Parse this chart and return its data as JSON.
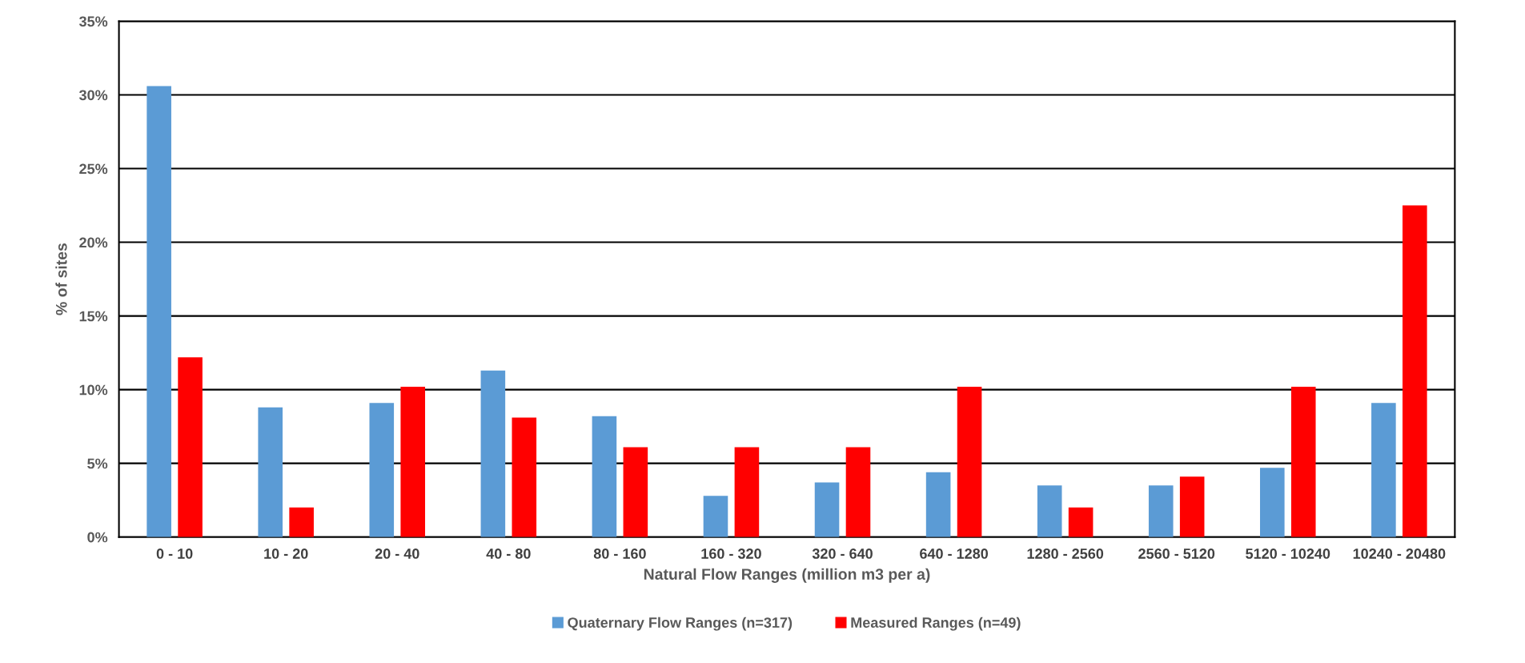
{
  "chart_data": {
    "type": "bar",
    "xlabel": "Natural Flow Ranges (million m3 per a)",
    "ylabel": "% of sites",
    "categories": [
      "0 - 10",
      "10 - 20",
      "20 - 40",
      "40 - 80",
      "80 - 160",
      "160 - 320",
      "320 - 640",
      "640 - 1280",
      "1280 - 2560",
      "2560 - 5120",
      "5120 - 10240",
      "10240 - 20480"
    ],
    "series": [
      {
        "name": "Quaternary Flow Ranges (n=317)",
        "color": "#5b9bd5",
        "values": [
          30.6,
          8.8,
          9.1,
          11.3,
          8.2,
          2.8,
          3.7,
          4.4,
          3.5,
          3.5,
          4.7,
          9.1
        ]
      },
      {
        "name": "Measured Ranges (n=49)",
        "color": "#ff0000",
        "values": [
          12.2,
          2.0,
          10.2,
          8.1,
          6.1,
          6.1,
          6.1,
          10.2,
          2.0,
          4.1,
          10.2,
          22.5
        ]
      }
    ],
    "ylim": [
      0,
      35
    ],
    "yticks": [
      {
        "value": 0,
        "label": "0%"
      },
      {
        "value": 5,
        "label": "5%"
      },
      {
        "value": 10,
        "label": "10%"
      },
      {
        "value": 15,
        "label": "15%"
      },
      {
        "value": 20,
        "label": "20%"
      },
      {
        "value": 25,
        "label": "25%"
      },
      {
        "value": 30,
        "label": "30%"
      },
      {
        "value": 35,
        "label": "35%"
      }
    ],
    "grid": "y",
    "legend": "bottom"
  }
}
